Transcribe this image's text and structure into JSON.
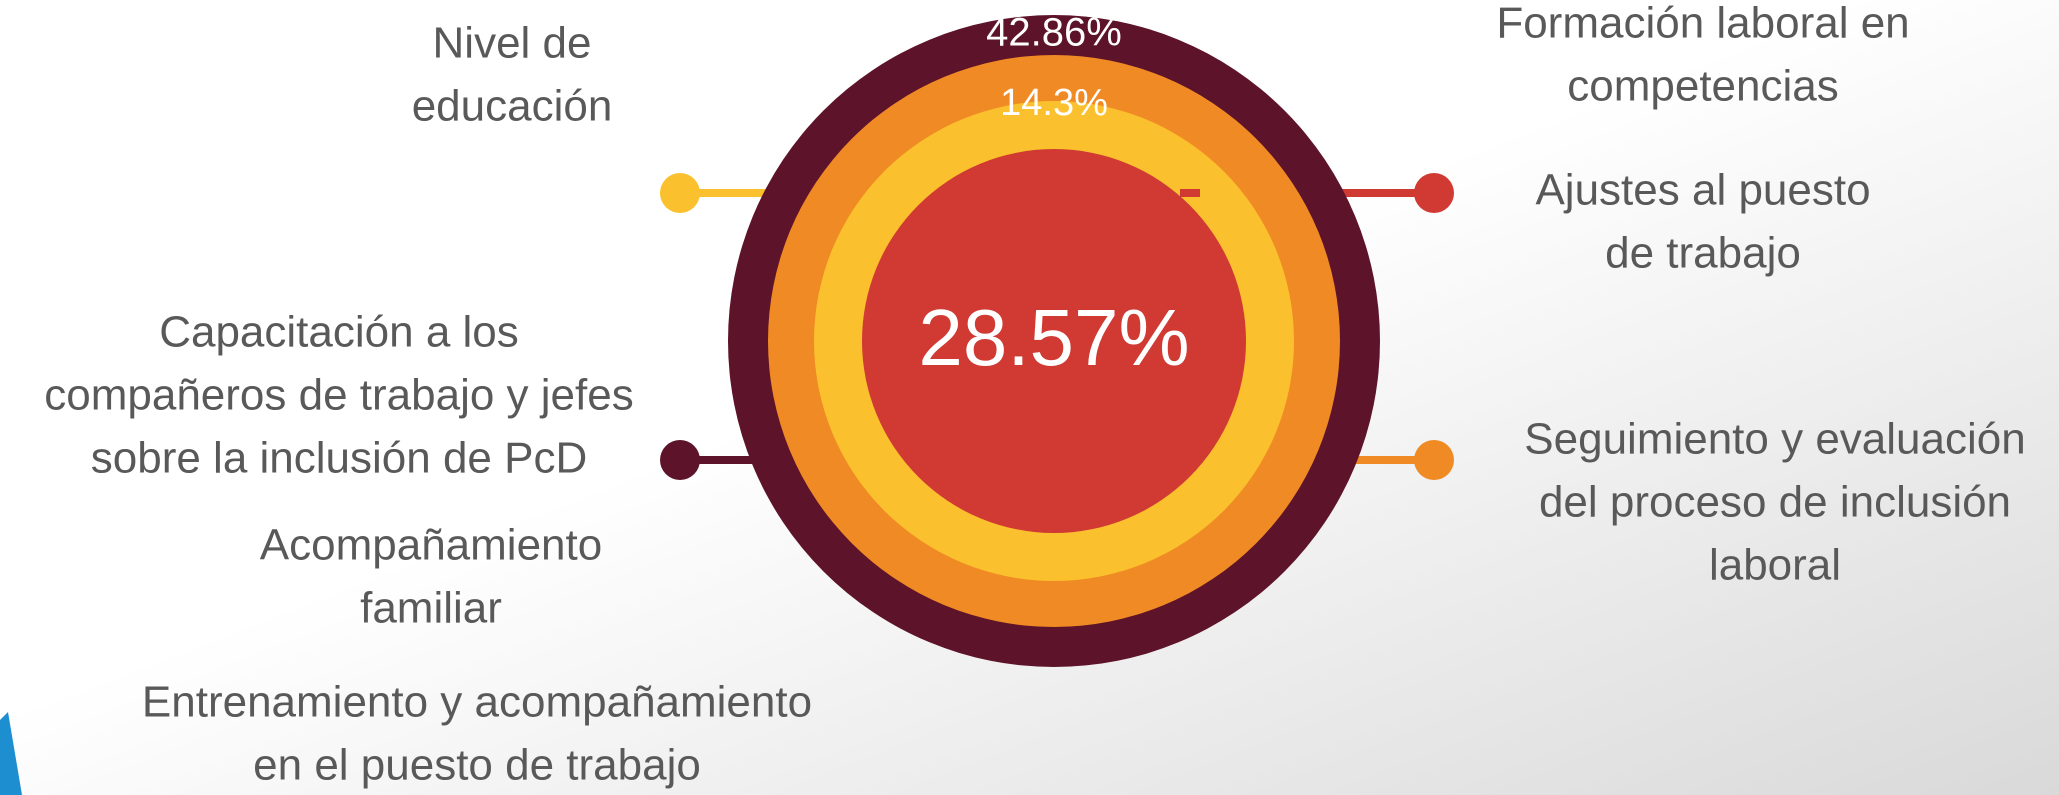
{
  "center": {
    "outer_ring": "42.86%",
    "middle_ring": "14.3%",
    "core": "28.57%"
  },
  "labels": {
    "nivel": [
      "Nivel de",
      "educación"
    ],
    "formacion": [
      "Formación laboral en",
      "competencias"
    ],
    "ajustes": [
      "Ajustes al puesto",
      "de trabajo"
    ],
    "capacitacion": [
      "Capacitación a los",
      "compañeros de trabajo y jefes",
      "sobre la inclusión de PcD"
    ],
    "acompanamiento": [
      "Acompañamiento",
      "familiar"
    ],
    "entrenamiento": [
      "Entrenamiento y acompañamiento",
      "en el puesto de trabajo"
    ],
    "seguimiento": [
      "Seguimiento y evaluación",
      "del proceso de inclusión",
      "laboral"
    ]
  }
}
